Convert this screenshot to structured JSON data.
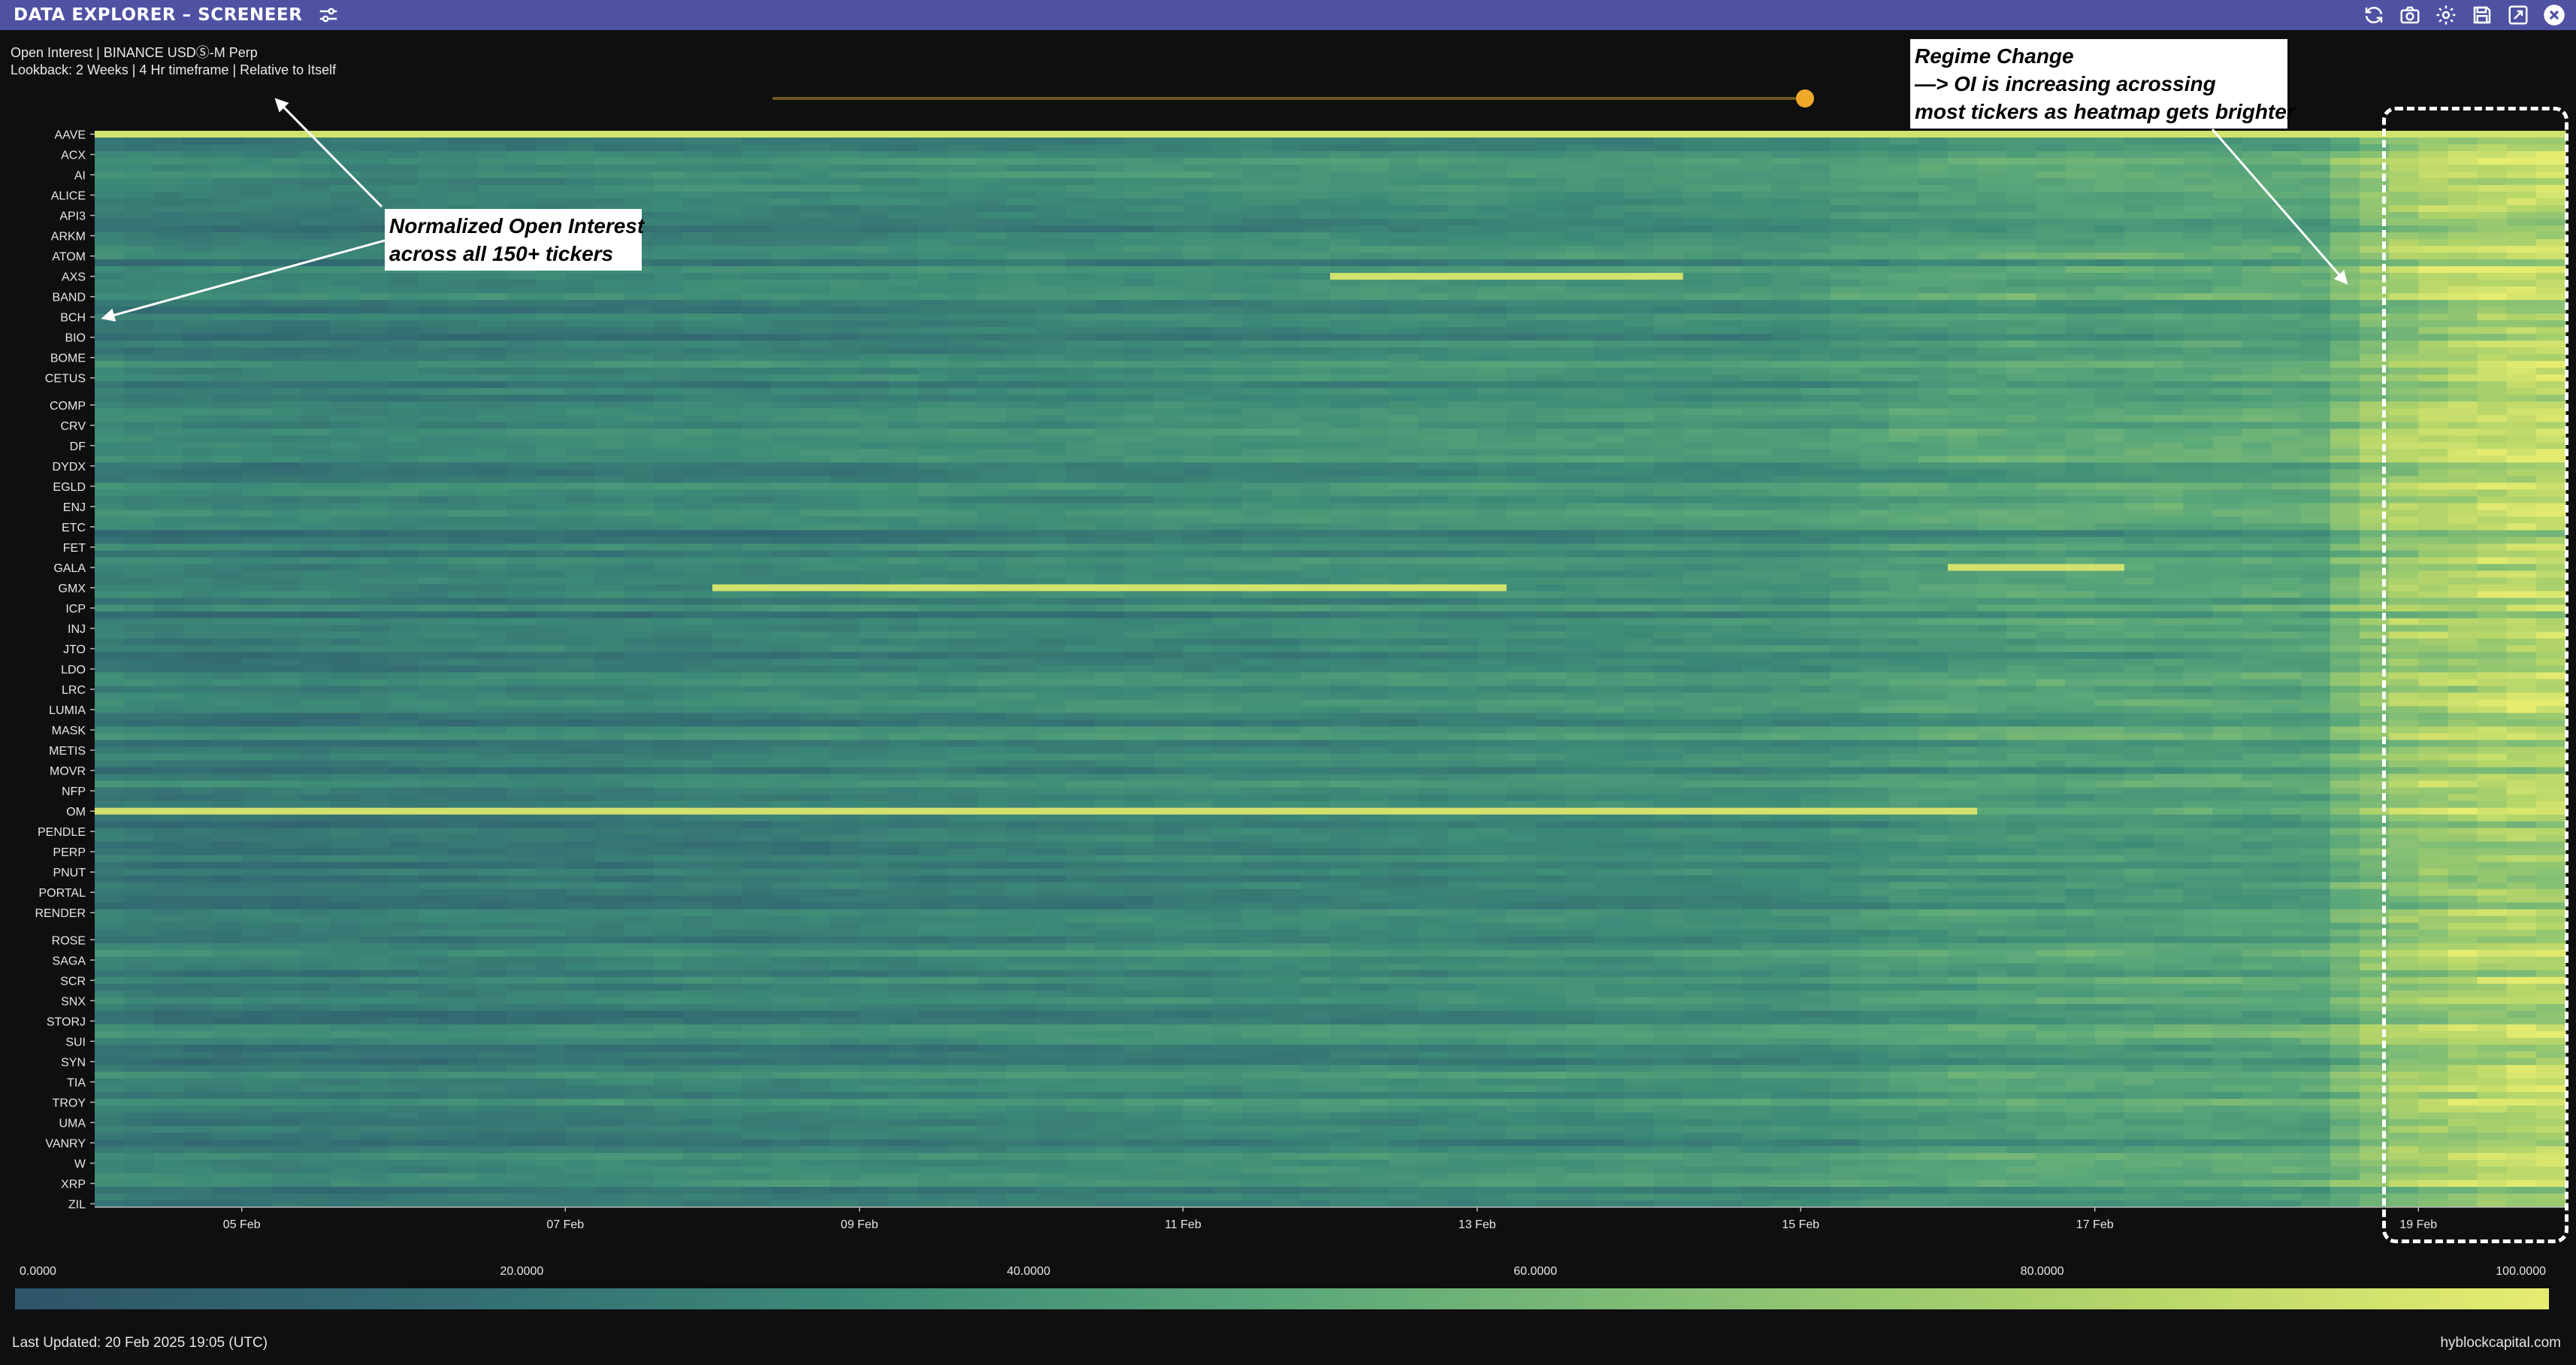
{
  "window": {
    "title": "DATA EXPLORER – SCRENEER"
  },
  "icons": {
    "filter": "sliders-icon",
    "toolbar": [
      "refresh-icon",
      "camera-icon",
      "gear-icon",
      "save-icon",
      "export-icon",
      "close-icon"
    ]
  },
  "header": {
    "line1": "Open Interest | BINANCE USDⓈ-M Perp",
    "line2": "Lookback: 2 Weeks | 4 Hr timeframe | Relative to Itself"
  },
  "colors": {
    "titlebar": "#4f52a3",
    "slider": "#f0a92a",
    "scale_low": "#2e5568",
    "scale_high": "#e6ec70"
  },
  "annotations": {
    "left": [
      "Normalized Open Interest",
      "across all 150+ tickers"
    ],
    "right": [
      "Regime Change",
      "—> OI is increasing acrossing",
      "most tickers as heatmap gets brighter"
    ]
  },
  "colorbar": {
    "labels": [
      "0.0000",
      "20.0000",
      "40.0000",
      "60.0000",
      "80.0000",
      "100.0000"
    ]
  },
  "footer": {
    "last_updated": "Last Updated: 20 Feb 2025 19:05 (UTC)",
    "brand": "hyblockcapital.com"
  },
  "chart_data": {
    "type": "heatmap",
    "title": "",
    "value_range": [
      0,
      100
    ],
    "y_tick_labels": [
      "AAVE",
      "ACX",
      "AI",
      "ALICE",
      "API3",
      "ARKM",
      "ATOM",
      "AXS",
      "BAND",
      "BCH",
      "BIO",
      "BOME",
      "CETUS",
      "COMP",
      "CRV",
      "DF",
      "DYDX",
      "EGLD",
      "ENJ",
      "ETC",
      "FET",
      "GALA",
      "GMX",
      "ICP",
      "INJ",
      "JTO",
      "LDO",
      "LRC",
      "LUMIA",
      "MASK",
      "METIS",
      "MOVR",
      "NFP",
      "OM",
      "PENDLE",
      "PERP",
      "PNUT",
      "PORTAL",
      "RENDER",
      "ROSE",
      "SAGA",
      "SCR",
      "SNX",
      "STORJ",
      "SUI",
      "SYN",
      "TIA",
      "TROY",
      "UMA",
      "VANRY",
      "W",
      "XRP",
      "ZIL"
    ],
    "x_tick_labels": [
      "05 Feb",
      "07 Feb",
      "09 Feb",
      "11 Feb",
      "13 Feb",
      "15 Feb",
      "17 Feb",
      "19 Feb"
    ],
    "rows": 159,
    "columns": 84,
    "trend": "values increase toward the right edge (last ~1.5 days brightest)",
    "highlights": [
      {
        "ticker": "AAVE",
        "from": "04 Feb",
        "to": "20 Feb",
        "value": 95
      },
      {
        "ticker": "OM",
        "from": "04 Feb",
        "to": "16 Feb",
        "value": 95
      },
      {
        "ticker": "GMX",
        "from": "08 Feb",
        "to": "13 Feb",
        "value": 95
      },
      {
        "ticker": "AXS",
        "from": "12 Feb",
        "to": "14 Feb",
        "value": 95
      },
      {
        "ticker": "GALA",
        "from": "16 Feb",
        "to": "17 Feb",
        "value": 95
      }
    ]
  }
}
